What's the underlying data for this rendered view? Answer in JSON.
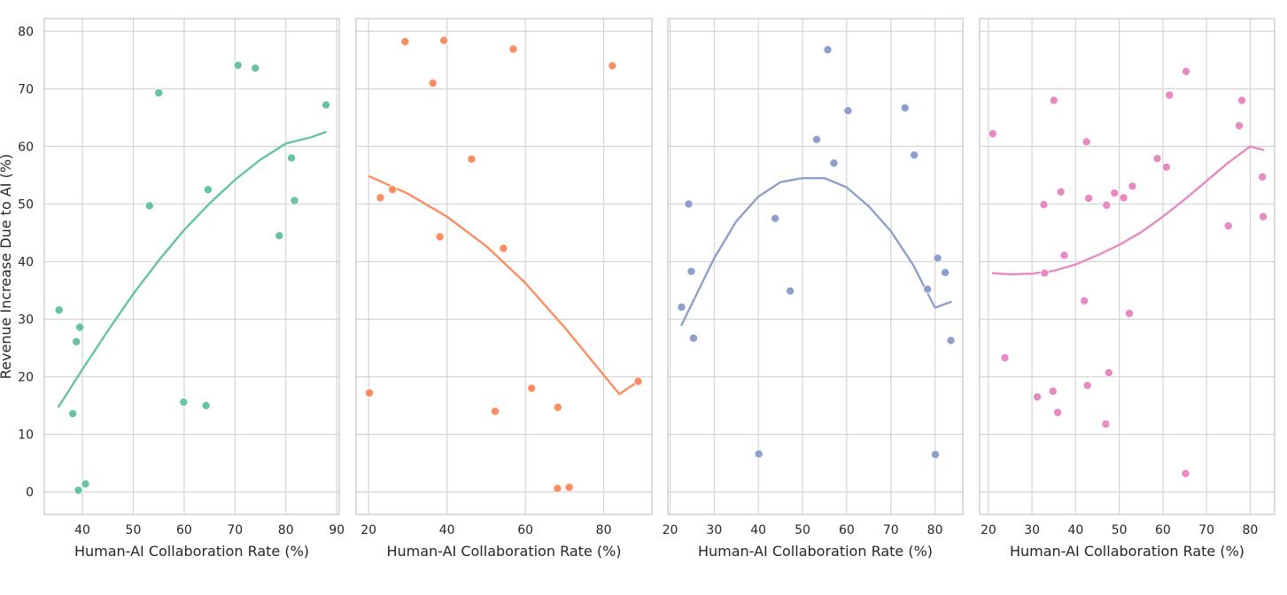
{
  "chart_data": [
    {
      "type": "scatter",
      "xlabel": "Human-AI Collaboration Rate (%)",
      "ylabel": "Revenue Increase Due to AI (%)",
      "xlim": [
        32.5,
        90.5
      ],
      "xticks": [
        40,
        50,
        60,
        70,
        80,
        90
      ],
      "ylim": [
        -3.9,
        82.2
      ],
      "yticks": [
        0,
        10,
        20,
        30,
        40,
        50,
        60,
        70,
        80
      ],
      "color": "#66c2a5",
      "grid": true,
      "series": [
        {
          "points": [
            [
              35.4,
              31.6
            ],
            [
              38.1,
              13.6
            ],
            [
              38.8,
              26.1
            ],
            [
              39.5,
              28.6
            ],
            [
              39.2,
              0.3
            ],
            [
              40.6,
              1.4
            ],
            [
              53.2,
              49.7
            ],
            [
              55.0,
              69.3
            ],
            [
              59.9,
              15.6
            ],
            [
              64.3,
              15.0
            ],
            [
              64.7,
              52.5
            ],
            [
              70.6,
              74.1
            ],
            [
              74.0,
              73.6
            ],
            [
              78.7,
              44.5
            ],
            [
              81.1,
              58.0
            ],
            [
              81.7,
              50.6
            ],
            [
              87.9,
              67.2
            ]
          ],
          "fit": [
            [
              35.3,
              14.8
            ],
            [
              40,
              21.3
            ],
            [
              45,
              28.0
            ],
            [
              50,
              34.4
            ],
            [
              55,
              40.2
            ],
            [
              60,
              45.5
            ],
            [
              65,
              50.1
            ],
            [
              70,
              54.2
            ],
            [
              75,
              57.7
            ],
            [
              80,
              60.5
            ],
            [
              85,
              61.6
            ],
            [
              87.8,
              62.5
            ]
          ]
        }
      ]
    },
    {
      "type": "scatter",
      "xlabel": "Human-AI Collaboration Rate (%)",
      "ylabel": "",
      "xlim": [
        16.8,
        92.3
      ],
      "xticks": [
        20,
        40,
        60,
        80
      ],
      "ylim": [
        -3.9,
        82.2
      ],
      "yticks": [
        0,
        10,
        20,
        30,
        40,
        50,
        60,
        70,
        80
      ],
      "color": "#fc8d62",
      "grid": true,
      "series": [
        {
          "points": [
            [
              20.2,
              17.2
            ],
            [
              23.0,
              51.1
            ],
            [
              26.1,
              52.5
            ],
            [
              29.3,
              78.2
            ],
            [
              36.4,
              71.0
            ],
            [
              38.2,
              44.3
            ],
            [
              39.2,
              78.4
            ],
            [
              46.3,
              57.8
            ],
            [
              52.3,
              14.0
            ],
            [
              54.4,
              42.3
            ],
            [
              56.9,
              76.9
            ],
            [
              61.6,
              18.0
            ],
            [
              68.3,
              14.7
            ],
            [
              68.2,
              0.6
            ],
            [
              71.2,
              0.8
            ],
            [
              82.2,
              74.0
            ],
            [
              88.8,
              19.2
            ]
          ],
          "fit": [
            [
              20.2,
              54.8
            ],
            [
              30,
              51.8
            ],
            [
              40,
              47.8
            ],
            [
              50,
              42.7
            ],
            [
              60,
              36.3
            ],
            [
              70,
              28.6
            ],
            [
              80,
              20.3
            ],
            [
              84,
              17.0
            ],
            [
              88.8,
              19.2
            ]
          ]
        }
      ]
    },
    {
      "type": "scatter",
      "xlabel": "Human-AI Collaboration Rate (%)",
      "ylabel": "",
      "xlim": [
        19.5,
        86.3
      ],
      "xticks": [
        20,
        30,
        40,
        50,
        60,
        70,
        80
      ],
      "ylim": [
        -3.9,
        82.2
      ],
      "yticks": [
        0,
        10,
        20,
        30,
        40,
        50,
        60,
        70,
        80
      ],
      "color": "#8da0cb",
      "grid": true,
      "series": [
        {
          "points": [
            [
              22.6,
              32.1
            ],
            [
              24.2,
              50.0
            ],
            [
              24.8,
              38.3
            ],
            [
              25.3,
              26.7
            ],
            [
              40.1,
              6.6
            ],
            [
              43.8,
              47.5
            ],
            [
              47.2,
              34.9
            ],
            [
              53.2,
              61.2
            ],
            [
              55.7,
              76.8
            ],
            [
              57.1,
              57.1
            ],
            [
              60.3,
              66.2
            ],
            [
              73.2,
              66.7
            ],
            [
              75.3,
              58.5
            ],
            [
              78.3,
              35.2
            ],
            [
              80.1,
              6.5
            ],
            [
              80.6,
              40.6
            ],
            [
              82.3,
              38.1
            ],
            [
              83.6,
              26.3
            ]
          ],
          "fit": [
            [
              22.6,
              29.0
            ],
            [
              30,
              40.6
            ],
            [
              35,
              47.0
            ],
            [
              40,
              51.3
            ],
            [
              45,
              53.8
            ],
            [
              50,
              54.5
            ],
            [
              55,
              54.5
            ],
            [
              60,
              52.9
            ],
            [
              65,
              49.6
            ],
            [
              70,
              45.3
            ],
            [
              75,
              39.5
            ],
            [
              80,
              32.0
            ],
            [
              83.6,
              33.0
            ]
          ]
        }
      ]
    },
    {
      "type": "scatter",
      "xlabel": "Human-AI Collaboration Rate (%)",
      "ylabel": "",
      "xlim": [
        18.0,
        85.6
      ],
      "xticks": [
        20,
        30,
        40,
        50,
        60,
        70,
        80
      ],
      "ylim": [
        -3.9,
        82.2
      ],
      "yticks": [
        0,
        10,
        20,
        30,
        40,
        50,
        60,
        70,
        80
      ],
      "color": "#e78ac3",
      "grid": true,
      "series": [
        {
          "points": [
            [
              21.0,
              62.2
            ],
            [
              23.8,
              23.3
            ],
            [
              31.2,
              16.5
            ],
            [
              32.7,
              49.9
            ],
            [
              32.9,
              38.0
            ],
            [
              34.8,
              17.5
            ],
            [
              35.0,
              68.0
            ],
            [
              35.9,
              13.8
            ],
            [
              36.6,
              52.1
            ],
            [
              37.4,
              41.1
            ],
            [
              42.0,
              33.2
            ],
            [
              42.5,
              60.8
            ],
            [
              42.7,
              18.5
            ],
            [
              43.0,
              51.0
            ],
            [
              46.9,
              11.8
            ],
            [
              47.1,
              49.8
            ],
            [
              47.6,
              20.7
            ],
            [
              48.9,
              51.9
            ],
            [
              51.0,
              51.1
            ],
            [
              52.3,
              31.0
            ],
            [
              53.0,
              53.1
            ],
            [
              58.7,
              57.9
            ],
            [
              60.8,
              56.4
            ],
            [
              61.5,
              68.9
            ],
            [
              65.3,
              73.0
            ],
            [
              65.2,
              3.2
            ],
            [
              75.0,
              46.2
            ],
            [
              77.5,
              63.6
            ],
            [
              78.1,
              68.0
            ],
            [
              82.8,
              54.7
            ],
            [
              83.0,
              47.8
            ]
          ],
          "fit": [
            [
              21.0,
              38.0
            ],
            [
              25,
              37.8
            ],
            [
              30,
              37.9
            ],
            [
              35,
              38.4
            ],
            [
              40,
              39.5
            ],
            [
              45,
              41.1
            ],
            [
              50,
              42.9
            ],
            [
              55,
              45.1
            ],
            [
              60,
              47.8
            ],
            [
              65,
              50.8
            ],
            [
              70,
              54.0
            ],
            [
              75,
              57.2
            ],
            [
              80,
              60.0
            ],
            [
              83.0,
              59.4
            ]
          ]
        }
      ]
    }
  ]
}
